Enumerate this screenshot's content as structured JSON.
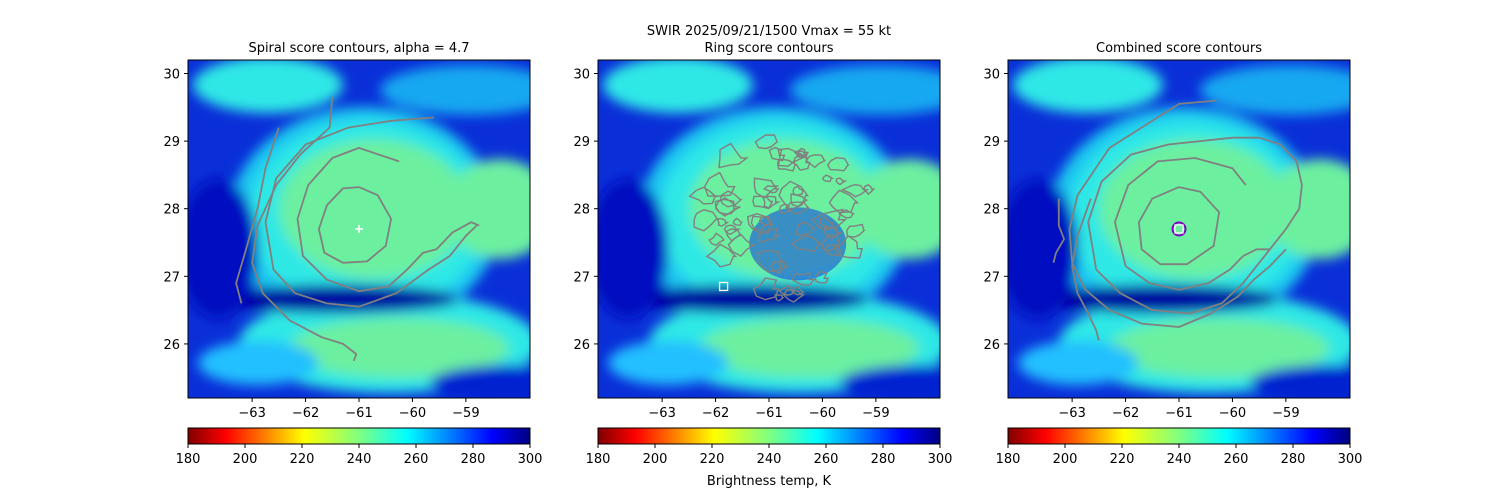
{
  "figure": {
    "suptitle_line1": "SWIR  2025/09/21/1500    Vmax = 55 kt",
    "colorbar_label": "Brightness temp, K"
  },
  "chart_data": [
    {
      "type": "heatmap",
      "title": "Spiral score contours, alpha =  4.7",
      "xlim": [
        -64.2,
        -57.8
      ],
      "ylim": [
        25.2,
        30.2
      ],
      "xticks": [
        -63,
        -62,
        -61,
        -60,
        -59
      ],
      "yticks": [
        26,
        27,
        28,
        29,
        30
      ],
      "contour_color": "#808080",
      "contours": [
        [
          [
            -61.0,
            28.32
          ],
          [
            -60.65,
            28.2
          ],
          [
            -60.4,
            27.85
          ],
          [
            -60.5,
            27.45
          ],
          [
            -60.85,
            27.22
          ],
          [
            -61.3,
            27.2
          ],
          [
            -61.65,
            27.35
          ],
          [
            -61.75,
            27.7
          ],
          [
            -61.6,
            28.05
          ],
          [
            -61.3,
            28.3
          ],
          [
            -61.0,
            28.32
          ]
        ],
        [
          [
            -60.25,
            28.7
          ],
          [
            -61.0,
            28.9
          ],
          [
            -61.5,
            28.75
          ],
          [
            -61.95,
            28.35
          ],
          [
            -62.15,
            27.85
          ],
          [
            -62.05,
            27.3
          ],
          [
            -61.6,
            26.95
          ],
          [
            -61.0,
            26.78
          ],
          [
            -60.45,
            26.85
          ],
          [
            -60.1,
            27.1
          ],
          [
            -59.8,
            27.35
          ],
          [
            -59.55,
            27.4
          ],
          [
            -59.25,
            27.65
          ],
          [
            -58.9,
            27.8
          ],
          [
            -58.75,
            27.75
          ]
        ],
        [
          [
            -59.6,
            29.35
          ],
          [
            -60.4,
            29.3
          ],
          [
            -61.2,
            29.2
          ],
          [
            -62.0,
            28.95
          ],
          [
            -62.55,
            28.45
          ],
          [
            -62.75,
            27.8
          ],
          [
            -62.6,
            27.1
          ],
          [
            -62.2,
            26.75
          ],
          [
            -61.6,
            26.6
          ],
          [
            -61.0,
            26.55
          ],
          [
            -60.3,
            26.75
          ],
          [
            -59.7,
            27.1
          ],
          [
            -59.3,
            27.3
          ],
          [
            -59.0,
            27.6
          ],
          [
            -58.8,
            27.75
          ]
        ],
        [
          [
            -61.5,
            29.65
          ],
          [
            -61.55,
            29.2
          ],
          [
            -62.1,
            28.8
          ],
          [
            -62.55,
            28.35
          ],
          [
            -62.9,
            27.75
          ],
          [
            -63.0,
            27.2
          ],
          [
            -62.8,
            26.75
          ],
          [
            -62.3,
            26.35
          ],
          [
            -61.7,
            26.1
          ],
          [
            -61.3,
            26.0
          ],
          [
            -61.05,
            25.85
          ],
          [
            -61.1,
            25.75
          ]
        ],
        [
          [
            -62.5,
            29.2
          ],
          [
            -62.75,
            28.6
          ],
          [
            -62.9,
            28.0
          ],
          [
            -63.15,
            27.3
          ],
          [
            -63.3,
            26.9
          ],
          [
            -63.2,
            26.6
          ]
        ]
      ],
      "markers": [
        {
          "x": -61.0,
          "y": 27.7,
          "shape": "plus",
          "color": "#ffffff"
        }
      ]
    },
    {
      "type": "heatmap",
      "title": "Ring score contours",
      "xlim": [
        -64.2,
        -57.8
      ],
      "ylim": [
        25.2,
        30.2
      ],
      "xticks": [
        -63,
        -62,
        -61,
        -60,
        -59
      ],
      "yticks": [
        26,
        27,
        28,
        29,
        30
      ],
      "contour_color": "#808080",
      "ring_region": {
        "cx": -60.65,
        "cy": 27.85,
        "rx": 1.65,
        "ry": 1.2
      },
      "markers": [
        {
          "x": -61.85,
          "y": 26.85,
          "shape": "square",
          "color": "#ffffff"
        }
      ]
    },
    {
      "type": "heatmap",
      "title": "Combined score contours",
      "xlim": [
        -64.2,
        -57.8
      ],
      "ylim": [
        25.2,
        30.2
      ],
      "xticks": [
        -63,
        -62,
        -61,
        -60,
        -59
      ],
      "yticks": [
        26,
        27,
        28,
        29,
        30
      ],
      "contour_color": "#808080",
      "contours": [
        [
          [
            -61.0,
            28.32
          ],
          [
            -60.6,
            28.25
          ],
          [
            -60.25,
            27.95
          ],
          [
            -60.35,
            27.45
          ],
          [
            -60.85,
            27.18
          ],
          [
            -61.35,
            27.18
          ],
          [
            -61.7,
            27.4
          ],
          [
            -61.75,
            27.8
          ],
          [
            -61.5,
            28.15
          ],
          [
            -61.0,
            28.32
          ]
        ],
        [
          [
            -59.75,
            28.35
          ],
          [
            -60.0,
            28.6
          ],
          [
            -60.7,
            28.75
          ],
          [
            -61.4,
            28.7
          ],
          [
            -61.95,
            28.35
          ],
          [
            -62.2,
            27.8
          ],
          [
            -62.0,
            27.15
          ],
          [
            -61.55,
            26.9
          ],
          [
            -61.0,
            26.8
          ],
          [
            -60.45,
            26.9
          ],
          [
            -60.05,
            27.1
          ],
          [
            -59.8,
            27.3
          ],
          [
            -59.55,
            27.4
          ],
          [
            -59.3,
            27.4
          ]
        ],
        [
          [
            -60.6,
            29.0
          ],
          [
            -61.2,
            28.95
          ],
          [
            -61.9,
            28.8
          ],
          [
            -62.45,
            28.4
          ],
          [
            -62.7,
            27.8
          ],
          [
            -62.55,
            27.1
          ],
          [
            -62.1,
            26.75
          ],
          [
            -61.5,
            26.5
          ],
          [
            -60.8,
            26.45
          ],
          [
            -60.2,
            26.6
          ],
          [
            -59.8,
            26.9
          ],
          [
            -59.5,
            27.2
          ],
          [
            -59.0,
            27.7
          ],
          [
            -58.75,
            28.0
          ],
          [
            -58.7,
            28.35
          ],
          [
            -58.8,
            28.7
          ],
          [
            -59.1,
            28.95
          ],
          [
            -59.5,
            29.05
          ],
          [
            -60.0,
            29.05
          ],
          [
            -60.6,
            29.0
          ]
        ],
        [
          [
            -60.3,
            29.6
          ],
          [
            -61.0,
            29.55
          ],
          [
            -61.7,
            29.2
          ],
          [
            -62.3,
            28.9
          ],
          [
            -62.9,
            28.2
          ],
          [
            -63.05,
            27.7
          ],
          [
            -63.0,
            27.2
          ],
          [
            -62.75,
            26.8
          ],
          [
            -62.3,
            26.5
          ],
          [
            -61.7,
            26.3
          ],
          [
            -61.0,
            26.25
          ],
          [
            -60.4,
            26.45
          ],
          [
            -59.9,
            26.7
          ],
          [
            -59.6,
            26.95
          ],
          [
            -59.3,
            27.15
          ],
          [
            -59.0,
            27.4
          ]
        ],
        [
          [
            -62.65,
            28.15
          ],
          [
            -62.9,
            27.6
          ],
          [
            -63.0,
            27.15
          ],
          [
            -62.9,
            26.75
          ],
          [
            -62.7,
            26.45
          ],
          [
            -62.55,
            26.2
          ],
          [
            -62.5,
            26.05
          ]
        ],
        [
          [
            -63.25,
            28.15
          ],
          [
            -63.25,
            27.75
          ],
          [
            -63.15,
            27.55
          ],
          [
            -63.3,
            27.35
          ],
          [
            -63.35,
            27.2
          ]
        ]
      ],
      "markers": [
        {
          "x": -61.0,
          "y": 27.7,
          "shape": "circle",
          "color": "#8000c0"
        },
        {
          "x": -61.0,
          "y": 27.7,
          "shape": "square",
          "color": "#ffffff"
        }
      ]
    }
  ],
  "colorbar": {
    "cmap": "jet_r",
    "vmin": 180,
    "vmax": 300,
    "ticks": [
      180,
      200,
      220,
      240,
      260,
      280,
      300
    ]
  }
}
